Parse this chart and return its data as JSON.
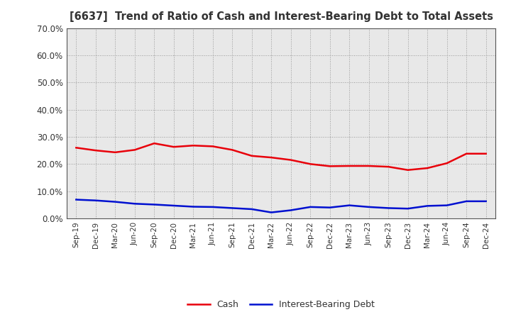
{
  "title": "[6637]  Trend of Ratio of Cash and Interest-Bearing Debt to Total Assets",
  "x_labels": [
    "Sep-19",
    "Dec-19",
    "Mar-20",
    "Jun-20",
    "Sep-20",
    "Dec-20",
    "Mar-21",
    "Jun-21",
    "Sep-21",
    "Dec-21",
    "Mar-22",
    "Jun-22",
    "Sep-22",
    "Dec-22",
    "Mar-23",
    "Jun-23",
    "Sep-23",
    "Dec-23",
    "Mar-24",
    "Jun-24",
    "Sep-24",
    "Dec-24"
  ],
  "cash": [
    0.26,
    0.25,
    0.243,
    0.252,
    0.276,
    0.263,
    0.268,
    0.265,
    0.252,
    0.23,
    0.224,
    0.215,
    0.2,
    0.192,
    0.193,
    0.193,
    0.19,
    0.178,
    0.185,
    0.203,
    0.238,
    0.238
  ],
  "ibd": [
    0.069,
    0.066,
    0.061,
    0.054,
    0.051,
    0.047,
    0.043,
    0.042,
    0.038,
    0.034,
    0.022,
    0.03,
    0.042,
    0.04,
    0.048,
    0.042,
    0.038,
    0.036,
    0.046,
    0.048,
    0.063,
    0.063
  ],
  "cash_color": "#e8000a",
  "ibd_color": "#0010d0",
  "background_color": "#ffffff",
  "plot_bg_color": "#e8e8e8",
  "grid_color": "#999999",
  "ylim": [
    0.0,
    0.7
  ],
  "yticks": [
    0.0,
    0.1,
    0.2,
    0.3,
    0.4,
    0.5,
    0.6,
    0.7
  ],
  "legend_cash": "Cash",
  "legend_ibd": "Interest-Bearing Debt",
  "line_width": 1.8,
  "title_color": "#333333",
  "tick_label_color": "#333333"
}
